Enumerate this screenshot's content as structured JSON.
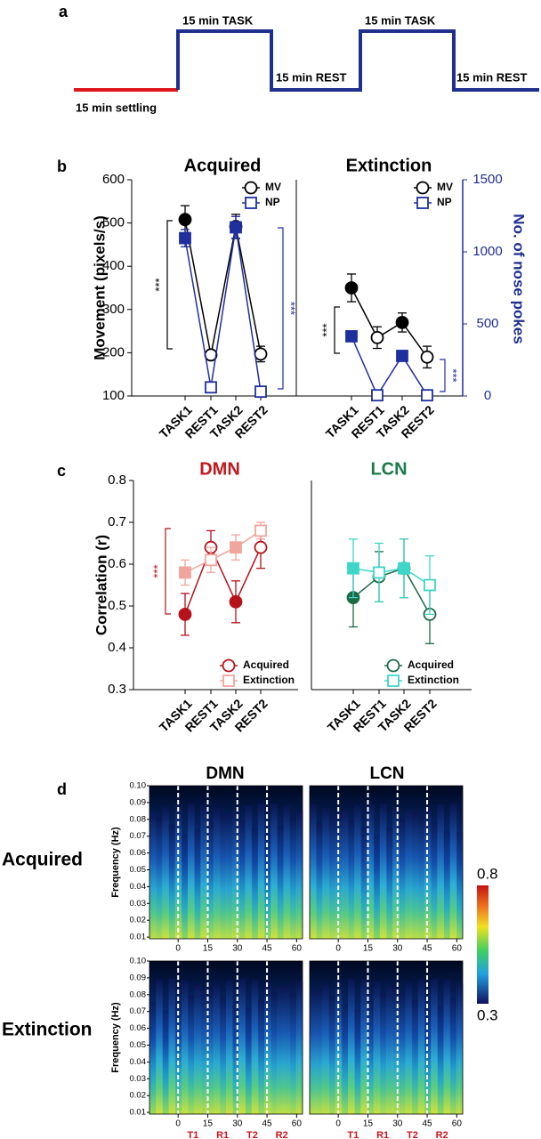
{
  "panel_a": {
    "label": "a",
    "settling": "15 min settling",
    "steps": [
      "15 min TASK",
      "15 min REST",
      "15 min TASK",
      "15 min REST"
    ]
  },
  "panel_labels": [
    "b",
    "c",
    "d"
  ],
  "row_labels": [
    "Acquired",
    "Extinction"
  ],
  "colorbar": {
    "range": [
      0.3,
      0.8
    ]
  },
  "chart_data": [
    {
      "type": "line",
      "title": "Acquired",
      "title_color": "#000000",
      "ylabel": "Movement (pixels/s)",
      "categories": [
        "TASK1",
        "REST1",
        "TASK2",
        "REST2"
      ],
      "ylim": [
        100,
        600
      ],
      "yticks": [
        100,
        200,
        300,
        400,
        500,
        600
      ],
      "y2lim": [
        0,
        1500
      ],
      "series": [
        {
          "name": "MV",
          "color": "#000000",
          "marker": "circle",
          "values": [
            508,
            195,
            492,
            197
          ],
          "errors": [
            32,
            10,
            28,
            18
          ]
        },
        {
          "name": "NP",
          "color": "#1f2f9e",
          "marker": "square",
          "axis": "y2",
          "values": [
            1095,
            60,
            1170,
            30
          ],
          "errors": [
            60,
            10,
            75,
            8
          ]
        }
      ],
      "annotations": [
        {
          "text": "***",
          "color": "#000000"
        },
        {
          "text": "***",
          "color": "#1f2f9e"
        }
      ],
      "legend": "upper right"
    },
    {
      "type": "line",
      "title": "Extinction",
      "title_color": "#000000",
      "y2label": "No. of nose pokes",
      "categories": [
        "TASK1",
        "REST1",
        "TASK2",
        "REST2"
      ],
      "ylim": [
        100,
        600
      ],
      "y2lim": [
        0,
        1500
      ],
      "y2ticks": [
        0,
        500,
        1000,
        1500
      ],
      "series": [
        {
          "name": "MV",
          "color": "#000000",
          "marker": "circle",
          "values": [
            350,
            235,
            270,
            190
          ],
          "errors": [
            32,
            25,
            22,
            25
          ]
        },
        {
          "name": "NP",
          "color": "#1f2f9e",
          "marker": "square",
          "axis": "y2",
          "values": [
            414,
            5,
            278,
            5
          ],
          "errors": [
            30,
            5,
            20,
            5
          ]
        }
      ],
      "annotations": [
        {
          "text": "***",
          "color": "#000000"
        },
        {
          "text": "***",
          "color": "#1f2f9e"
        }
      ],
      "legend": "upper right"
    },
    {
      "type": "line",
      "title": "DMN",
      "title_color": "#c0181e",
      "ylabel": "Correlation (r)",
      "categories": [
        "TASK1",
        "REST1",
        "TASK2",
        "REST2"
      ],
      "ylim": [
        0.3,
        0.8
      ],
      "yticks": [
        0.3,
        0.4,
        0.5,
        0.6,
        0.7,
        0.8
      ],
      "series": [
        {
          "name": "Acquired",
          "color": "#b5121b",
          "marker": "circle",
          "values": [
            0.48,
            0.64,
            0.51,
            0.64
          ],
          "errors": [
            0.05,
            0.04,
            0.05,
            0.05
          ]
        },
        {
          "name": "Extinction",
          "color": "#f2a59c",
          "marker": "square",
          "values": [
            0.58,
            0.61,
            0.64,
            0.68
          ],
          "errors": [
            0.03,
            0.03,
            0.03,
            0.02
          ]
        }
      ],
      "annotations": [
        {
          "text": "***",
          "color": "#b5121b"
        }
      ],
      "legend": "lower right"
    },
    {
      "type": "line",
      "title": "LCN",
      "title_color": "#1a7a4a",
      "categories": [
        "TASK1",
        "REST1",
        "TASK2",
        "REST2"
      ],
      "ylim": [
        0.3,
        0.8
      ],
      "series": [
        {
          "name": "Acquired",
          "color": "#1d6b45",
          "marker": "circle",
          "values": [
            0.52,
            0.57,
            0.59,
            0.48
          ],
          "errors": [
            0.07,
            0.06,
            0.07,
            0.07
          ]
        },
        {
          "name": "Extinction",
          "color": "#3fd6c8",
          "marker": "square",
          "values": [
            0.59,
            0.58,
            0.59,
            0.55
          ],
          "errors": [
            0.07,
            0.07,
            0.07,
            0.07
          ]
        }
      ],
      "legend": "lower right"
    },
    {
      "type": "heatmap",
      "title": "DMN",
      "ylabel": "Frequency (Hz)",
      "xlim": [
        -14.5,
        63
      ],
      "xticks": [
        0,
        15,
        30,
        45,
        60
      ],
      "ylim": [
        0.009,
        0.1
      ],
      "yticks": [
        0.01,
        0.02,
        0.03,
        0.04,
        0.05,
        0.06,
        0.07,
        0.08,
        0.09,
        {
          "value": 0.1,
          "label": "0.10"
        }
      ]
    },
    {
      "type": "heatmap",
      "title": "LCN",
      "xlim": [
        -14.5,
        63
      ],
      "xticks": [
        0,
        15,
        30,
        45,
        60
      ],
      "ylim": [
        0.009,
        0.1
      ]
    },
    {
      "type": "heatmap",
      "ylabel": "Frequency (Hz)",
      "xlim": [
        -14.5,
        63
      ],
      "xticks": [
        0,
        15,
        30,
        45,
        60
      ],
      "ylim": [
        0.009,
        0.1
      ],
      "yticks": [
        0.01,
        0.02,
        0.03,
        0.04,
        0.05,
        0.06,
        0.07,
        0.08,
        0.09,
        {
          "value": 0.1,
          "label": "0.10"
        }
      ],
      "period_labels": [
        "T1",
        "R1",
        "T2",
        "R2"
      ]
    },
    {
      "type": "heatmap",
      "xlim": [
        -14.5,
        63
      ],
      "xticks": [
        0,
        15,
        30,
        45,
        60
      ],
      "ylim": [
        0.009,
        0.1
      ],
      "period_labels": [
        "T1",
        "R1",
        "T2",
        "R2"
      ]
    }
  ]
}
